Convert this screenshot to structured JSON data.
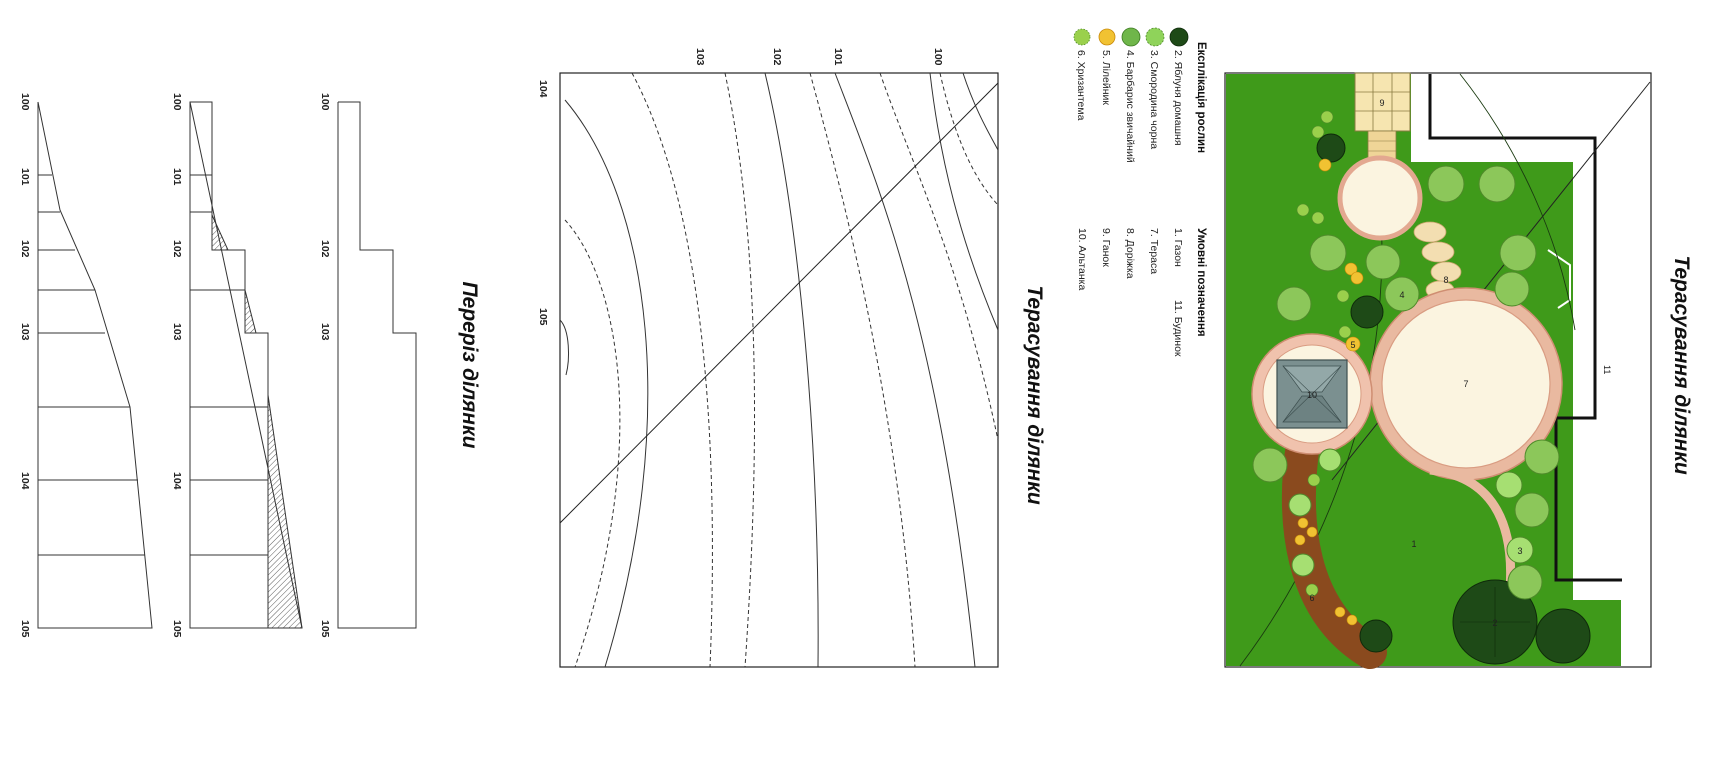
{
  "plan": {
    "title": "Терасування ділянки",
    "house_label": "11",
    "object_numbers": {
      "n1": "1",
      "n2": "2",
      "n3": "3",
      "n4": "4",
      "n5": "5",
      "n6": "6",
      "n7": "7",
      "n8": "8",
      "n9": "9",
      "n10": "10"
    }
  },
  "plants_legend": {
    "header": "Експлікація рослин",
    "items": [
      {
        "label": "2. Яблуня домашня",
        "icon": "apple-tree-icon",
        "color": "#1e4a17"
      },
      {
        "label": "3. Смородина чорна",
        "icon": "currant-icon",
        "color": "#8fd35a"
      },
      {
        "label": "4. Барбарис звичайний",
        "icon": "barberry-icon",
        "color": "#6fb64a"
      },
      {
        "label": "5. Лілейник",
        "icon": "daylily-icon",
        "color": "#f1c232"
      },
      {
        "label": "6. Хризантема",
        "icon": "chrysanthemum-icon",
        "color": "#9ad04c"
      }
    ]
  },
  "symbols_legend": {
    "header": "Умовні позначення",
    "items": [
      "1. Газон",
      "7. Тераса",
      "8. Доріжка",
      "9. Ганок",
      "10. Альтанка",
      "11. Будинок"
    ]
  },
  "terracing": {
    "title": "Терасування ділянки",
    "contour_labels": [
      "100",
      "101",
      "102",
      "103"
    ],
    "corner_labels": {
      "left_top": "104",
      "left_mid": "105"
    }
  },
  "section": {
    "title": "Переріз ділянки",
    "elevations": [
      "100",
      "101",
      "102",
      "103",
      "104",
      "105"
    ]
  },
  "colors": {
    "lawn": "#3f9a1a",
    "terrace_fill": "#fbf4e0",
    "terrace_ring": "#e3a890",
    "path": "#8a4a1e",
    "apple_tree": "#1e4a17",
    "shrub": "#8cc75a"
  }
}
